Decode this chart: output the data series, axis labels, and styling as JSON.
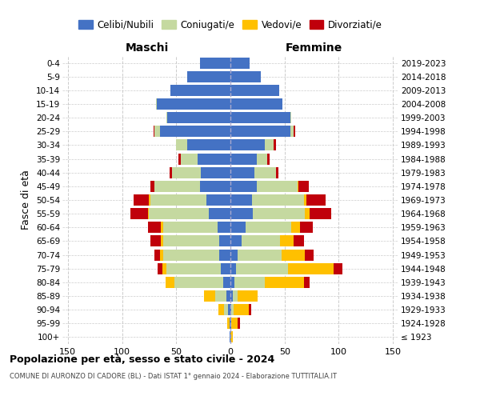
{
  "age_groups": [
    "100+",
    "95-99",
    "90-94",
    "85-89",
    "80-84",
    "75-79",
    "70-74",
    "65-69",
    "60-64",
    "55-59",
    "50-54",
    "45-49",
    "40-44",
    "35-39",
    "30-34",
    "25-29",
    "20-24",
    "15-19",
    "10-14",
    "5-9",
    "0-4"
  ],
  "birth_years": [
    "≤ 1923",
    "1924-1928",
    "1929-1933",
    "1934-1938",
    "1939-1943",
    "1944-1948",
    "1949-1953",
    "1954-1958",
    "1959-1963",
    "1964-1968",
    "1969-1973",
    "1974-1978",
    "1979-1983",
    "1984-1988",
    "1989-1993",
    "1994-1998",
    "1999-2003",
    "2004-2008",
    "2009-2013",
    "2014-2018",
    "2019-2023"
  ],
  "colors": {
    "celibi": "#4472c4",
    "coniugati": "#c5d9a0",
    "vedovi": "#ffc000",
    "divorziati": "#c0000b"
  },
  "maschi": {
    "celibi": [
      1,
      1,
      2,
      4,
      7,
      9,
      10,
      10,
      12,
      20,
      22,
      28,
      27,
      30,
      40,
      65,
      58,
      68,
      55,
      40,
      28
    ],
    "coniugati": [
      0,
      0,
      4,
      10,
      45,
      50,
      52,
      52,
      50,
      55,
      52,
      42,
      27,
      16,
      10,
      5,
      1,
      1,
      0,
      0,
      0
    ],
    "vedovi": [
      0,
      2,
      5,
      10,
      8,
      4,
      3,
      2,
      2,
      1,
      1,
      0,
      0,
      0,
      0,
      0,
      0,
      0,
      0,
      0,
      0
    ],
    "divorziati": [
      0,
      0,
      0,
      0,
      0,
      4,
      5,
      10,
      12,
      16,
      14,
      4,
      2,
      2,
      0,
      1,
      0,
      0,
      0,
      0,
      0
    ]
  },
  "femmine": {
    "celibi": [
      0,
      1,
      1,
      2,
      4,
      5,
      7,
      10,
      14,
      21,
      20,
      24,
      22,
      24,
      32,
      55,
      55,
      48,
      45,
      28,
      18
    ],
    "coniugati": [
      0,
      0,
      2,
      5,
      28,
      48,
      40,
      36,
      42,
      48,
      48,
      38,
      20,
      10,
      8,
      3,
      1,
      0,
      0,
      0,
      0
    ],
    "vedovi": [
      2,
      6,
      14,
      18,
      36,
      42,
      22,
      12,
      8,
      4,
      2,
      1,
      0,
      0,
      0,
      0,
      0,
      0,
      0,
      0,
      0
    ],
    "divorziati": [
      0,
      2,
      2,
      0,
      5,
      8,
      8,
      10,
      12,
      20,
      18,
      9,
      2,
      2,
      2,
      2,
      0,
      0,
      0,
      0,
      0
    ]
  },
  "xlim": 155,
  "title": "Popolazione per età, sesso e stato civile - 2024",
  "subtitle": "COMUNE DI AURONZO DI CADORE (BL) - Dati ISTAT 1° gennaio 2024 - Elaborazione TUTTITALIA.IT",
  "xlabel_left": "Maschi",
  "xlabel_right": "Femmine",
  "ylabel_left": "Fasce di età",
  "legend_labels": [
    "Celibi/Nubili",
    "Coniugati/e",
    "Vedovi/e",
    "Divorziati/e"
  ],
  "bg_color": "#ffffff",
  "grid_color": "#cccccc",
  "xticks": [
    -150,
    -100,
    -50,
    0,
    50,
    100,
    150
  ]
}
